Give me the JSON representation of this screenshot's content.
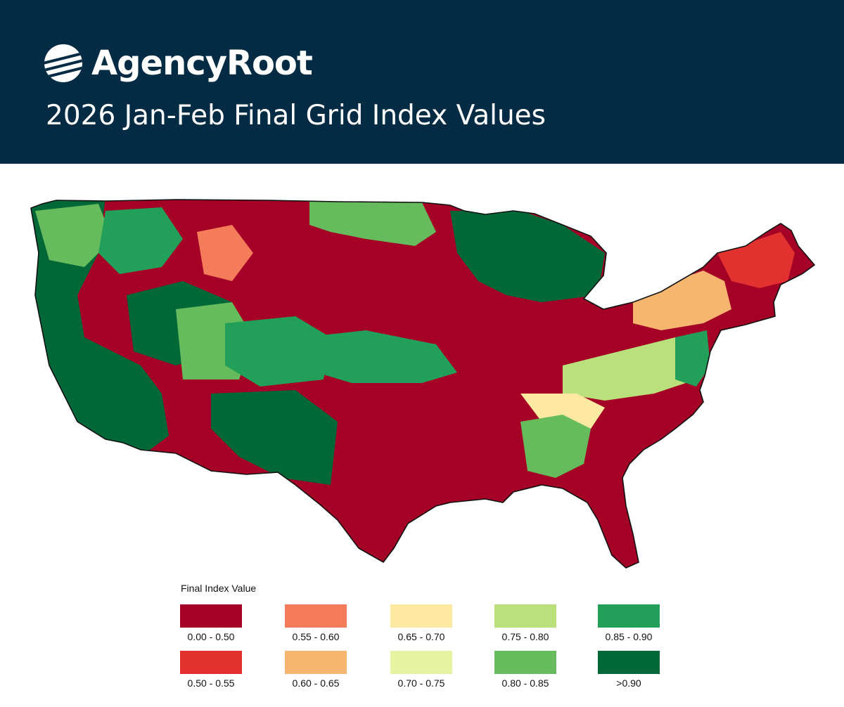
{
  "header": {
    "brand_name": "AgencyRoot",
    "title": "2026 Jan-Feb Final Grid Index Values",
    "background_color": "#032b43"
  },
  "map": {
    "region": "Contiguous United States",
    "dominant_classes": {
      "plains_and_south": "0.00 - 0.50",
      "upper_great_lakes_and_west": ">0.90"
    }
  },
  "legend": {
    "title": "Final Index Value",
    "items": [
      {
        "label": "0.00 - 0.50",
        "color": "#a50026"
      },
      {
        "label": "0.55 - 0.60",
        "color": "#f47c5a"
      },
      {
        "label": "0.65 - 0.70",
        "color": "#fde9a0"
      },
      {
        "label": "0.75 - 0.80",
        "color": "#b9e07a"
      },
      {
        "label": "0.85 - 0.90",
        "color": "#22a05a"
      },
      {
        "label": "0.50 - 0.55",
        "color": "#e3312f"
      },
      {
        "label": "0.60 - 0.65",
        "color": "#f7b66f"
      },
      {
        "label": "0.70 - 0.75",
        "color": "#e6f4a2"
      },
      {
        "label": "0.80 - 0.85",
        "color": "#66bb5c"
      },
      {
        "label": ">0.90",
        "color": "#006837"
      }
    ]
  }
}
